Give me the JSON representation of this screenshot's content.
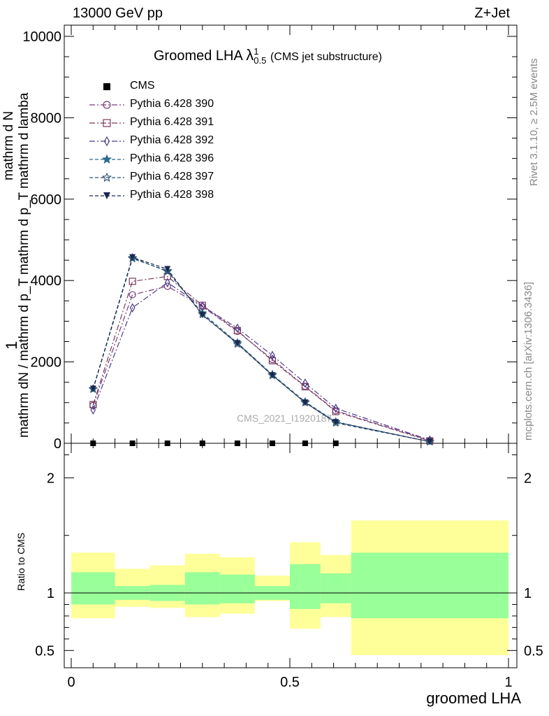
{
  "header": {
    "energy_label": "13000 GeV pp",
    "process_label": "Z+Jet",
    "side_text_top": "Rivet 3.1.10, ≥ 2.5M events",
    "side_text_bottom": "mcplots.cern.ch [arXiv:1306.3436]",
    "watermark": "CMS_2021_I1920187"
  },
  "chart_data": [
    {
      "type": "line",
      "title_main": "Groomed LHA",
      "title_symbol": "λ",
      "title_sup": "1",
      "title_sub": "0.5",
      "title_suffix": "(CMS jet substructure)",
      "ylabel_top": "1",
      "ylabel_line1": "mathrm dN / mathrm d p_T mathrm d p_T mathrm d lamba",
      "ylabel_line2": "mathrm d N",
      "xlim": [
        0,
        1
      ],
      "ylim": [
        0,
        10000
      ],
      "y_ticks": [
        "0",
        "2000",
        "4000",
        "6000",
        "8000",
        "10000"
      ],
      "x": [
        0.05,
        0.14,
        0.22,
        0.3,
        0.38,
        0.46,
        0.535,
        0.605,
        0.82
      ],
      "series": [
        {
          "name": "CMS",
          "color": "#000000",
          "marker": "square-filled",
          "style": "none",
          "values": [
            0,
            0,
            0,
            0,
            0,
            0,
            0,
            0,
            null
          ]
        },
        {
          "name": "Pythia 6.428 390",
          "color": "#7a3b7a",
          "marker": "circle-open",
          "style": "dashdot",
          "values": [
            930,
            3650,
            3860,
            3360,
            2750,
            2060,
            1400,
            800,
            70
          ]
        },
        {
          "name": "Pythia 6.428 391",
          "color": "#7a3b5c",
          "marker": "square-open",
          "style": "dashdot",
          "values": [
            950,
            3980,
            4100,
            3390,
            2770,
            2030,
            1390,
            780,
            60
          ]
        },
        {
          "name": "Pythia 6.428 392",
          "color": "#4b3a8a",
          "marker": "diamond-open",
          "style": "dashdot",
          "values": [
            820,
            3330,
            3950,
            3370,
            2830,
            2160,
            1480,
            860,
            80
          ]
        },
        {
          "name": "Pythia 6.428 396",
          "color": "#2e6b8a",
          "marker": "star-filled",
          "style": "dashed",
          "values": [
            1340,
            4560,
            4220,
            3200,
            2470,
            1690,
            1020,
            530,
            40
          ]
        },
        {
          "name": "Pythia 6.428 397",
          "color": "#2e5070",
          "marker": "star-open",
          "style": "dashed",
          "values": [
            1330,
            4540,
            4240,
            3170,
            2440,
            1670,
            1000,
            500,
            40
          ]
        },
        {
          "name": "Pythia 6.428 398",
          "color": "#1b2850",
          "marker": "triangle-down-filled",
          "style": "dashed",
          "values": [
            1340,
            4570,
            4280,
            3150,
            2460,
            1670,
            1000,
            520,
            40
          ]
        }
      ]
    },
    {
      "type": "area",
      "ylabel": "Ratio to CMS",
      "xlabel": "groomed LHA",
      "xlim": [
        0,
        1
      ],
      "ylim": [
        0.35,
        2.3
      ],
      "x_ticks": [
        "0",
        "0.5",
        "1"
      ],
      "y_ticks": [
        "0.5",
        "1",
        "2"
      ],
      "reference": 1,
      "band_colors": {
        "stat": "#99ff99",
        "total": "#ffff99"
      },
      "bins": [
        {
          "lo": 0.0,
          "hi": 0.1,
          "stat": [
            0.9,
            1.18
          ],
          "total": [
            0.78,
            1.35
          ]
        },
        {
          "lo": 0.1,
          "hi": 0.18,
          "stat": [
            0.94,
            1.06
          ],
          "total": [
            0.88,
            1.21
          ]
        },
        {
          "lo": 0.18,
          "hi": 0.26,
          "stat": [
            0.93,
            1.07
          ],
          "total": [
            0.87,
            1.24
          ]
        },
        {
          "lo": 0.26,
          "hi": 0.34,
          "stat": [
            0.9,
            1.18
          ],
          "total": [
            0.79,
            1.34
          ]
        },
        {
          "lo": 0.34,
          "hi": 0.42,
          "stat": [
            0.91,
            1.16
          ],
          "total": [
            0.82,
            1.31
          ]
        },
        {
          "lo": 0.42,
          "hi": 0.5,
          "stat": [
            0.94,
            1.06
          ],
          "total": [
            0.93,
            1.15
          ]
        },
        {
          "lo": 0.5,
          "hi": 0.57,
          "stat": [
            0.86,
            1.25
          ],
          "total": [
            0.69,
            1.44
          ]
        },
        {
          "lo": 0.57,
          "hi": 0.64,
          "stat": [
            0.91,
            1.17
          ],
          "total": [
            0.79,
            1.33
          ]
        },
        {
          "lo": 0.64,
          "hi": 1.0,
          "stat": [
            0.78,
            1.35
          ],
          "total": [
            0.46,
            1.63
          ]
        }
      ]
    }
  ]
}
